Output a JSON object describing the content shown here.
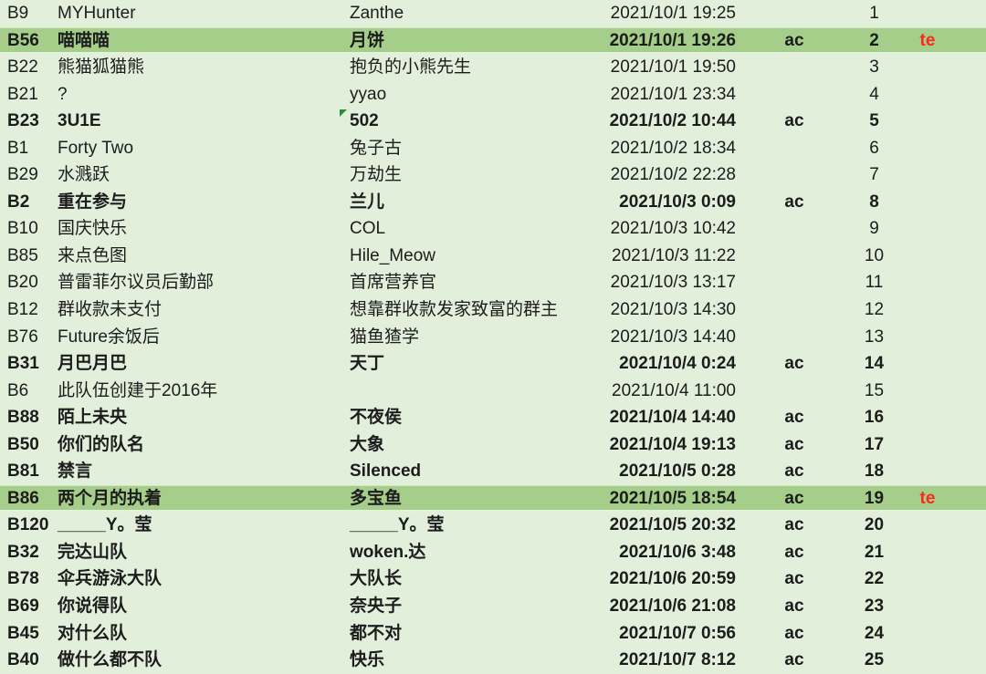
{
  "sheet": {
    "labels": {
      "ac": "ac",
      "te": "te"
    },
    "colors": {
      "row_background": "#e2efda",
      "highlight_background": "#a6ce8b",
      "text": "#1c1c1c",
      "te_red": "#fa291c",
      "note_indicator_green": "#2e8b36"
    },
    "rows": [
      {
        "id": "B9",
        "team": "MYHunter",
        "person": "Zanthe",
        "datetime": "2021/10/1 19:25",
        "ac": "",
        "num": "1",
        "te": "",
        "bold": false,
        "highlight": false,
        "note": false
      },
      {
        "id": "B56",
        "team": "喵喵喵",
        "person": "月饼",
        "datetime": "2021/10/1 19:26",
        "ac": "ac",
        "num": "2",
        "te": "te",
        "bold": true,
        "highlight": true,
        "note": false
      },
      {
        "id": "B22",
        "team": "熊猫狐猫熊",
        "person": "抱负的小熊先生",
        "datetime": "2021/10/1 19:50",
        "ac": "",
        "num": "3",
        "te": "",
        "bold": false,
        "highlight": false,
        "note": false
      },
      {
        "id": "B21",
        "team": "?",
        "person": "yyao",
        "datetime": "2021/10/1 23:34",
        "ac": "",
        "num": "4",
        "te": "",
        "bold": false,
        "highlight": false,
        "note": false
      },
      {
        "id": "B23",
        "team": "3U1E",
        "person": "502",
        "datetime": "2021/10/2 10:44",
        "ac": "ac",
        "num": "5",
        "te": "",
        "bold": true,
        "highlight": false,
        "note": true
      },
      {
        "id": "B1",
        "team": "Forty Two",
        "person": "兔子古",
        "datetime": "2021/10/2 18:34",
        "ac": "",
        "num": "6",
        "te": "",
        "bold": false,
        "highlight": false,
        "note": false
      },
      {
        "id": "B29",
        "team": "水溅跃",
        "person": "万劫生",
        "datetime": "2021/10/2 22:28",
        "ac": "",
        "num": "7",
        "te": "",
        "bold": false,
        "highlight": false,
        "note": false
      },
      {
        "id": "B2",
        "team": "重在参与",
        "person": "兰儿",
        "datetime": "2021/10/3 0:09",
        "ac": "ac",
        "num": "8",
        "te": "",
        "bold": true,
        "highlight": false,
        "note": false
      },
      {
        "id": "B10",
        "team": "国庆快乐",
        "person": "COL",
        "datetime": "2021/10/3 10:42",
        "ac": "",
        "num": "9",
        "te": "",
        "bold": false,
        "highlight": false,
        "note": false
      },
      {
        "id": "B85",
        "team": "来点色图",
        "person": "Hile_Meow",
        "datetime": "2021/10/3 11:22",
        "ac": "",
        "num": "10",
        "te": "",
        "bold": false,
        "highlight": false,
        "note": false
      },
      {
        "id": "B20",
        "team": "普雷菲尔议员后勤部",
        "person": "首席营养官",
        "datetime": "2021/10/3 13:17",
        "ac": "",
        "num": "11",
        "te": "",
        "bold": false,
        "highlight": false,
        "note": false
      },
      {
        "id": "B12",
        "team": "群收款未支付",
        "person": "想靠群收款发家致富的群主",
        "datetime": "2021/10/3 14:30",
        "ac": "",
        "num": "12",
        "te": "",
        "bold": false,
        "highlight": false,
        "note": false
      },
      {
        "id": "B76",
        "team": "Future余饭后",
        "person": "猫鱼猹学",
        "datetime": "2021/10/3 14:40",
        "ac": "",
        "num": "13",
        "te": "",
        "bold": false,
        "highlight": false,
        "note": false
      },
      {
        "id": "B31",
        "team": "月巴月巴",
        "person": "天丁",
        "datetime": "2021/10/4 0:24",
        "ac": "ac",
        "num": "14",
        "te": "",
        "bold": true,
        "highlight": false,
        "note": false
      },
      {
        "id": "B6",
        "team": "此队伍创建于2016年",
        "person": "",
        "datetime": "2021/10/4 11:00",
        "ac": "",
        "num": "15",
        "te": "",
        "bold": false,
        "highlight": false,
        "note": false
      },
      {
        "id": "B88",
        "team": "陌上未央",
        "person": "不夜侯",
        "datetime": "2021/10/4 14:40",
        "ac": "ac",
        "num": "16",
        "te": "",
        "bold": true,
        "highlight": false,
        "note": false
      },
      {
        "id": "B50",
        "team": "你们的队名",
        "person": "大象",
        "datetime": "2021/10/4 19:13",
        "ac": "ac",
        "num": "17",
        "te": "",
        "bold": true,
        "highlight": false,
        "note": false
      },
      {
        "id": "B81",
        "team": "禁言",
        "person": "Silenced",
        "datetime": "2021/10/5 0:28",
        "ac": "ac",
        "num": "18",
        "te": "",
        "bold": true,
        "highlight": false,
        "note": false
      },
      {
        "id": "B86",
        "team": "两个月的执着",
        "person": "多宝鱼",
        "datetime": "2021/10/5 18:54",
        "ac": "ac",
        "num": "19",
        "te": "te",
        "bold": true,
        "highlight": true,
        "note": false
      },
      {
        "id": "B120",
        "team": "_____Y。莹",
        "person": "_____Y。莹",
        "datetime": "2021/10/5 20:32",
        "ac": "ac",
        "num": "20",
        "te": "",
        "bold": true,
        "highlight": false,
        "note": false
      },
      {
        "id": "B32",
        "team": "完达山队",
        "person": "woken.达",
        "datetime": "2021/10/6 3:48",
        "ac": "ac",
        "num": "21",
        "te": "",
        "bold": true,
        "highlight": false,
        "note": false
      },
      {
        "id": "B78",
        "team": "伞兵游泳大队",
        "person": "大队长",
        "datetime": "2021/10/6 20:59",
        "ac": "ac",
        "num": "22",
        "te": "",
        "bold": true,
        "highlight": false,
        "note": false
      },
      {
        "id": "B69",
        "team": "你说得队",
        "person": "奈央子",
        "datetime": "2021/10/6 21:08",
        "ac": "ac",
        "num": "23",
        "te": "",
        "bold": true,
        "highlight": false,
        "note": false
      },
      {
        "id": "B45",
        "team": "对什么队",
        "person": "都不对",
        "datetime": "2021/10/7 0:56",
        "ac": "ac",
        "num": "24",
        "te": "",
        "bold": true,
        "highlight": false,
        "note": false
      },
      {
        "id": "B40",
        "team": "做什么都不队",
        "person": "快乐",
        "datetime": "2021/10/7 8:12",
        "ac": "ac",
        "num": "25",
        "te": "",
        "bold": true,
        "highlight": false,
        "note": false
      }
    ]
  }
}
